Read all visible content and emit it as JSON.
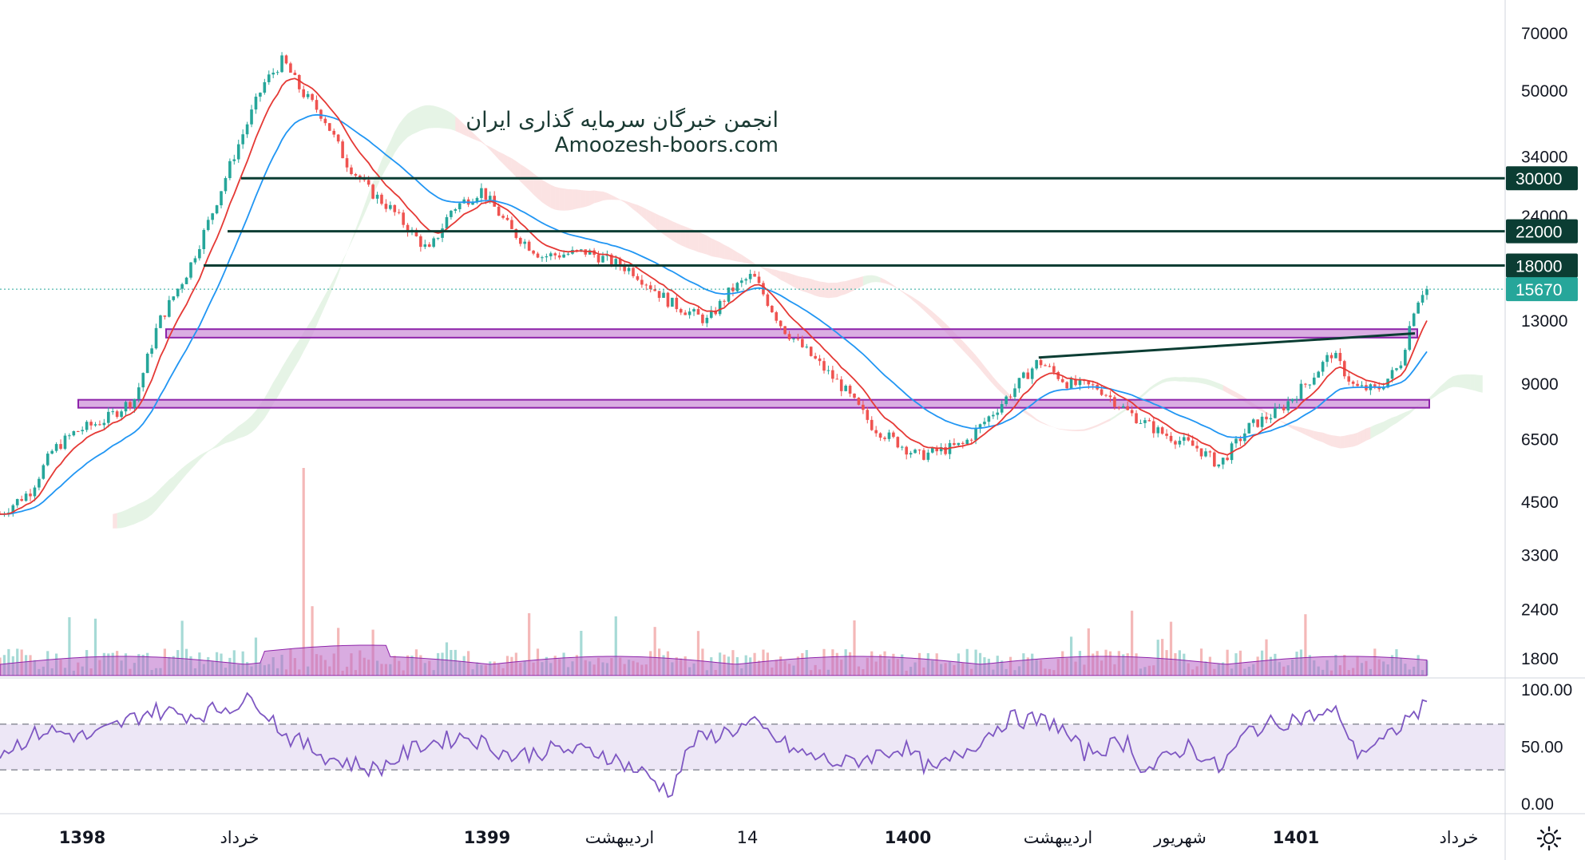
{
  "watermark": {
    "line1": "انجمن خبرگان سرمایه گذاری ایران",
    "line2": "Amoozesh-boors.com"
  },
  "colors": {
    "up": "#26a69a",
    "down": "#ef5350",
    "ema_fast": "#e53935",
    "ema_slow": "#2196f3",
    "level_line": "#0b3d33",
    "zone_fill": "#ce93d8",
    "zone_stroke": "#8e24aa",
    "last_price": "#26a69a",
    "rsi_line": "#7e57c2",
    "rsi_band": "#ede7f6",
    "volume": "#ba68c8"
  },
  "icons": {
    "settings": "gear-icon"
  },
  "chart_data": {
    "type": "candlestick",
    "scale": "log",
    "price_axis_ticks": [
      70000,
      50000,
      34000,
      24000,
      13000,
      9000,
      6500,
      4500,
      3300,
      2400,
      1800
    ],
    "time_axis_labels": [
      {
        "label": "1398",
        "bold": true
      },
      {
        "label": "خرداد",
        "bold": false
      },
      {
        "label": "1399",
        "bold": true
      },
      {
        "label": "اردیبهشت",
        "bold": false
      },
      {
        "label": "14",
        "bold": false
      },
      {
        "label": "1400",
        "bold": true
      },
      {
        "label": "اردیبهشت",
        "bold": false
      },
      {
        "label": "شهریور",
        "bold": false
      },
      {
        "label": "1401",
        "bold": true
      },
      {
        "label": "خرداد",
        "bold": false
      }
    ],
    "horizontal_levels": [
      {
        "value": 30000,
        "label": "30000"
      },
      {
        "value": 22000,
        "label": "22000"
      },
      {
        "value": 18000,
        "label": "18000"
      }
    ],
    "last_price": {
      "value": 15670,
      "label": "15670"
    },
    "support_zones": [
      {
        "low": 11800,
        "high": 12400
      },
      {
        "low": 7900,
        "high": 8200
      }
    ],
    "trendline": [
      {
        "t": 0.645,
        "v": 10500
      },
      {
        "t": 0.94,
        "v": 12100
      }
    ],
    "price_path": [
      {
        "t": 0.0,
        "v": 4200
      },
      {
        "t": 0.02,
        "v": 4800
      },
      {
        "t": 0.035,
        "v": 6100
      },
      {
        "t": 0.05,
        "v": 6800
      },
      {
        "t": 0.07,
        "v": 7300
      },
      {
        "t": 0.09,
        "v": 8300
      },
      {
        "t": 0.105,
        "v": 12800
      },
      {
        "t": 0.125,
        "v": 17500
      },
      {
        "t": 0.14,
        "v": 24000
      },
      {
        "t": 0.155,
        "v": 34000
      },
      {
        "t": 0.175,
        "v": 52000
      },
      {
        "t": 0.188,
        "v": 60000
      },
      {
        "t": 0.2,
        "v": 50000
      },
      {
        "t": 0.215,
        "v": 43000
      },
      {
        "t": 0.23,
        "v": 33000
      },
      {
        "t": 0.245,
        "v": 28000
      },
      {
        "t": 0.26,
        "v": 25000
      },
      {
        "t": 0.285,
        "v": 19500
      },
      {
        "t": 0.3,
        "v": 25000
      },
      {
        "t": 0.32,
        "v": 28000
      },
      {
        "t": 0.34,
        "v": 22000
      },
      {
        "t": 0.36,
        "v": 19000
      },
      {
        "t": 0.39,
        "v": 19500
      },
      {
        "t": 0.42,
        "v": 17500
      },
      {
        "t": 0.445,
        "v": 14500
      },
      {
        "t": 0.47,
        "v": 13000
      },
      {
        "t": 0.485,
        "v": 15500
      },
      {
        "t": 0.5,
        "v": 17000
      },
      {
        "t": 0.52,
        "v": 12500
      },
      {
        "t": 0.54,
        "v": 10500
      },
      {
        "t": 0.56,
        "v": 8800
      },
      {
        "t": 0.58,
        "v": 7000
      },
      {
        "t": 0.61,
        "v": 5900
      },
      {
        "t": 0.64,
        "v": 6300
      },
      {
        "t": 0.665,
        "v": 8000
      },
      {
        "t": 0.69,
        "v": 10300
      },
      {
        "t": 0.71,
        "v": 9000
      },
      {
        "t": 0.73,
        "v": 8800
      },
      {
        "t": 0.75,
        "v": 7600
      },
      {
        "t": 0.77,
        "v": 6800
      },
      {
        "t": 0.795,
        "v": 6200
      },
      {
        "t": 0.81,
        "v": 5600
      },
      {
        "t": 0.83,
        "v": 7000
      },
      {
        "t": 0.85,
        "v": 7700
      },
      {
        "t": 0.87,
        "v": 9200
      },
      {
        "t": 0.885,
        "v": 10800
      },
      {
        "t": 0.9,
        "v": 8800
      },
      {
        "t": 0.915,
        "v": 8700
      },
      {
        "t": 0.93,
        "v": 10000
      },
      {
        "t": 0.94,
        "v": 14300
      },
      {
        "t": 0.948,
        "v": 16200
      }
    ],
    "rsi": {
      "ticks": [
        100.0,
        50.0,
        0.0
      ],
      "tick_labels": [
        "100.00",
        "50.00",
        "0.00"
      ],
      "upper": 70,
      "lower": 30,
      "path": [
        {
          "t": 0.0,
          "v": 45
        },
        {
          "t": 0.03,
          "v": 65
        },
        {
          "t": 0.06,
          "v": 58
        },
        {
          "t": 0.1,
          "v": 82
        },
        {
          "t": 0.13,
          "v": 78
        },
        {
          "t": 0.17,
          "v": 92
        },
        {
          "t": 0.19,
          "v": 60
        },
        {
          "t": 0.22,
          "v": 40
        },
        {
          "t": 0.25,
          "v": 30
        },
        {
          "t": 0.28,
          "v": 52
        },
        {
          "t": 0.31,
          "v": 60
        },
        {
          "t": 0.34,
          "v": 42
        },
        {
          "t": 0.37,
          "v": 48
        },
        {
          "t": 0.4,
          "v": 45
        },
        {
          "t": 0.43,
          "v": 25
        },
        {
          "t": 0.445,
          "v": 10
        },
        {
          "t": 0.46,
          "v": 55
        },
        {
          "t": 0.5,
          "v": 70
        },
        {
          "t": 0.53,
          "v": 45
        },
        {
          "t": 0.56,
          "v": 35
        },
        {
          "t": 0.6,
          "v": 50
        },
        {
          "t": 0.62,
          "v": 28
        },
        {
          "t": 0.65,
          "v": 55
        },
        {
          "t": 0.67,
          "v": 75
        },
        {
          "t": 0.7,
          "v": 72
        },
        {
          "t": 0.72,
          "v": 45
        },
        {
          "t": 0.75,
          "v": 55
        },
        {
          "t": 0.76,
          "v": 28
        },
        {
          "t": 0.79,
          "v": 52
        },
        {
          "t": 0.81,
          "v": 30
        },
        {
          "t": 0.83,
          "v": 65
        },
        {
          "t": 0.86,
          "v": 75
        },
        {
          "t": 0.89,
          "v": 80
        },
        {
          "t": 0.9,
          "v": 45
        },
        {
          "t": 0.92,
          "v": 55
        },
        {
          "t": 0.935,
          "v": 75
        },
        {
          "t": 0.948,
          "v": 86
        }
      ]
    }
  }
}
